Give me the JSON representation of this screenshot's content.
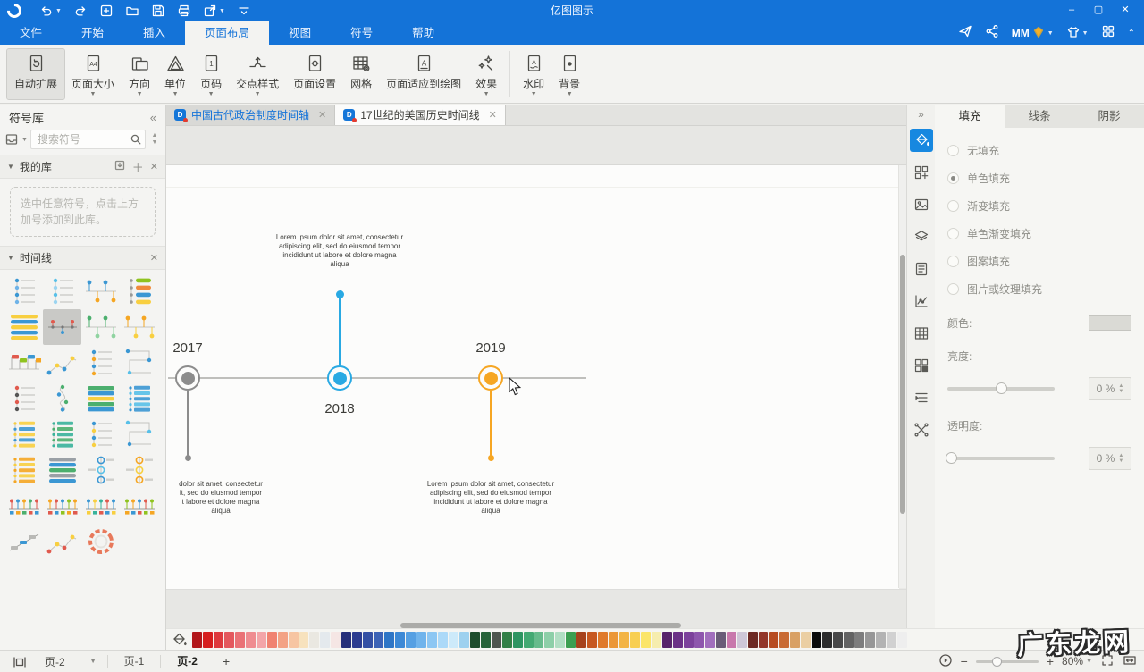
{
  "theme": {
    "titlebar_blue": "#1473d8",
    "accent_blue": "#1788e0",
    "timeline_blue": "#29a9e3",
    "timeline_orange": "#f6a623",
    "timeline_gray": "#8c8c8c"
  },
  "titlebar": {
    "title": "亿图图示",
    "quick_actions": [
      {
        "name": "undo",
        "caret": true
      },
      {
        "name": "redo",
        "caret": false
      },
      {
        "name": "new",
        "caret": false
      },
      {
        "name": "open",
        "caret": false
      },
      {
        "name": "save",
        "caret": false
      },
      {
        "name": "print",
        "caret": false
      },
      {
        "name": "export",
        "caret": true
      },
      {
        "name": "customize",
        "caret": false
      }
    ],
    "user_badge": "MM",
    "window_controls": [
      "minimize",
      "maximize",
      "close"
    ]
  },
  "menubar": {
    "items": [
      {
        "label": "文件",
        "active": false
      },
      {
        "label": "开始",
        "active": false
      },
      {
        "label": "插入",
        "active": false
      },
      {
        "label": "页面布局",
        "active": true
      },
      {
        "label": "视图",
        "active": false
      },
      {
        "label": "符号",
        "active": false
      },
      {
        "label": "帮助",
        "active": false
      }
    ]
  },
  "ribbon": {
    "items": [
      {
        "label": "自动扩展",
        "icon": "autoexpand",
        "caret": false,
        "active": true
      },
      {
        "label": "页面大小",
        "icon": "pagesize",
        "caret": true
      },
      {
        "label": "方向",
        "icon": "orientation",
        "caret": true
      },
      {
        "label": "单位",
        "icon": "unit",
        "caret": true
      },
      {
        "label": "页码",
        "icon": "pagenum",
        "caret": true
      },
      {
        "label": "交点样式",
        "icon": "junction",
        "caret": true
      },
      {
        "label": "页面设置",
        "icon": "pagesetup",
        "caret": false
      },
      {
        "label": "网格",
        "icon": "grid",
        "caret": false
      },
      {
        "label": "页面适应到绘图",
        "icon": "pagefit",
        "caret": false
      },
      {
        "label": "效果",
        "icon": "effects",
        "caret": true
      },
      {
        "label": "水印",
        "icon": "watermark",
        "caret": true,
        "group2": true
      },
      {
        "label": "背景",
        "icon": "background",
        "caret": true
      }
    ]
  },
  "sidebar": {
    "title": "符号库",
    "search_placeholder": "搜索符号",
    "my_library_label": "我的库",
    "empty_hint": "选中任意符号，点击上方加号添加到此库。",
    "timeline_section_label": "时间线",
    "symbols": [
      {
        "kind": "vt",
        "colors": [
          "#3b97d3",
          "#6fb3e8"
        ]
      },
      {
        "kind": "vt",
        "colors": [
          "#58c0e8",
          "#9bd4f0"
        ]
      },
      {
        "kind": "ht",
        "colors": [
          "#3b97d3",
          "#f5a623"
        ]
      },
      {
        "kind": "tags",
        "colors": [
          "#8fc31f",
          "#f08a3c",
          "#3b97d3",
          "#f8cf40"
        ]
      },
      {
        "kind": "list",
        "colors": [
          "#f8cf40",
          "#3b97d3",
          "#f8cf40",
          "#3b97d3",
          "#f8cf40"
        ]
      },
      {
        "kind": "milestone",
        "colors": [
          "#e05a4e",
          "#3b97d3"
        ],
        "selected": true
      },
      {
        "kind": "ht",
        "colors": [
          "#4caf6e",
          "#8fd3a0"
        ]
      },
      {
        "kind": "ht",
        "colors": [
          "#f5a623",
          "#f8cf40"
        ]
      },
      {
        "kind": "flags",
        "colors": [
          "#e05a4e",
          "#8fc31f",
          "#3b97d3",
          "#f5a623"
        ]
      },
      {
        "kind": "zig",
        "colors": [
          "#3b97d3",
          "#f8cf40"
        ]
      },
      {
        "kind": "vt",
        "colors": [
          "#3b97d3",
          "#f5a623"
        ]
      },
      {
        "kind": "angle",
        "colors": [
          "#3b97d3",
          "#58c0e8"
        ]
      },
      {
        "kind": "vt",
        "colors": [
          "#e05a4e",
          "#555555"
        ]
      },
      {
        "kind": "snake",
        "colors": [
          "#4caf6e",
          "#3b97d3"
        ]
      },
      {
        "kind": "list",
        "colors": [
          "#4caf6e",
          "#3b97d3",
          "#f8cf40",
          "#4caf6e",
          "#3b97d3"
        ]
      },
      {
        "kind": "vtb",
        "colors": [
          "#3b97d3",
          "#58c0e8"
        ]
      },
      {
        "kind": "vtb",
        "colors": [
          "#f8cf40",
          "#3b97d3"
        ]
      },
      {
        "kind": "vtb",
        "colors": [
          "#39b39b",
          "#4caf6e"
        ]
      },
      {
        "kind": "vt",
        "colors": [
          "#3b97d3",
          "#f8cf40"
        ]
      },
      {
        "kind": "angle",
        "colors": [
          "#58c0e8",
          "#3b97d3"
        ]
      },
      {
        "kind": "vtb",
        "colors": [
          "#f5a623",
          "#f8cf40"
        ]
      },
      {
        "kind": "list",
        "colors": [
          "#9aa0a6",
          "#3b97d3",
          "#4caf6e"
        ]
      },
      {
        "kind": "circles",
        "colors": [
          "#3b97d3",
          "#58c0e8"
        ]
      },
      {
        "kind": "circles",
        "colors": [
          "#f5a623",
          "#f8cf40"
        ]
      },
      {
        "kind": "ticks",
        "colors": [
          "#e05a4e",
          "#3b97d3",
          "#f5a623",
          "#4caf6e"
        ]
      },
      {
        "kind": "ticks",
        "colors": [
          "#f5a623",
          "#e05a4e",
          "#3b97d3",
          "#8fc31f"
        ]
      },
      {
        "kind": "ticks",
        "colors": [
          "#3b97d3",
          "#f8cf40",
          "#39b39b",
          "#e05a4e"
        ]
      },
      {
        "kind": "ticks",
        "colors": [
          "#8fc31f",
          "#f5a623",
          "#3b97d3",
          "#e05a4e"
        ]
      },
      {
        "kind": "diag",
        "colors": [
          "#9aa0a6",
          "#3b97d3"
        ]
      },
      {
        "kind": "zig",
        "colors": [
          "#e05a4e",
          "#f8cf40"
        ]
      },
      {
        "kind": "ring",
        "colors": [
          "#e8795b"
        ]
      }
    ]
  },
  "doc_tabs": [
    {
      "label": "中国古代政治制度时间轴",
      "highlighted": true,
      "active": false
    },
    {
      "label": "17世纪的美国历史时间线",
      "highlighted": false,
      "active": true
    }
  ],
  "canvas": {
    "timeline": {
      "milestones": [
        {
          "year": "2017",
          "color": "#8c8c8c",
          "direction": "down",
          "text": "dolor sit amet, consectetur\nit, sed do eiusmod tempor\nt labore et dolore magna\naliqua"
        },
        {
          "year": "2018",
          "color": "#29a9e3",
          "direction": "up",
          "text": "Lorem ipsum dolor sit amet, consectetur\nadipiscing elit, sed do eiusmod tempor\nincididunt ut labore et dolore magna\naliqua"
        },
        {
          "year": "2019",
          "color": "#f6a623",
          "direction": "down",
          "text": "Lorem ipsum dolor sit amet, consectetur\nadipiscing elit, sed do eiusmod tempor\nincididunt ut labore et dolore magna\naliqua"
        }
      ]
    }
  },
  "right_toolbar": {
    "items": [
      {
        "name": "fill",
        "active": true
      },
      {
        "name": "symbols"
      },
      {
        "name": "image"
      },
      {
        "name": "layers"
      },
      {
        "name": "note"
      },
      {
        "name": "chart"
      },
      {
        "name": "table"
      },
      {
        "name": "blocks"
      },
      {
        "name": "outline"
      },
      {
        "name": "connect"
      }
    ]
  },
  "format_panel": {
    "tabs": [
      {
        "label": "填充",
        "active": true
      },
      {
        "label": "线条",
        "active": false
      },
      {
        "label": "阴影",
        "active": false
      }
    ],
    "fill_options": [
      {
        "label": "无填充",
        "selected": false
      },
      {
        "label": "单色填充",
        "selected": true
      },
      {
        "label": "渐变填充",
        "selected": false
      },
      {
        "label": "单色渐变填充",
        "selected": false
      },
      {
        "label": "图案填充",
        "selected": false
      },
      {
        "label": "图片或纹理填充",
        "selected": false
      }
    ],
    "color_label": "颜色:",
    "brightness": {
      "label": "亮度:",
      "value": "0 %",
      "percent": 50
    },
    "opacity": {
      "label": "透明度:",
      "value": "0 %",
      "percent": 0
    }
  },
  "palette": [
    "#b2171b",
    "#d61f1f",
    "#de3a3e",
    "#e4585d",
    "#ea7276",
    "#ef8c90",
    "#f3a5a8",
    "#f08270",
    "#f3a284",
    "#f7c5a2",
    "#f7e2bd",
    "#eae8e1",
    "#e4e9ed",
    "#f5e6e4",
    "#262f7a",
    "#2c3c90",
    "#3450a4",
    "#3c63b6",
    "#2e76c6",
    "#3c89d6",
    "#55a0e3",
    "#70b4ec",
    "#8dc7f3",
    "#acd9f8",
    "#cdeafa",
    "#9ed1ef",
    "#1e4e2d",
    "#266238",
    "#4e564f",
    "#328047",
    "#2e9562",
    "#44a973",
    "#67bb8c",
    "#8dcfa8",
    "#b1dec3",
    "#3c9f51",
    "#a7431d",
    "#c75921",
    "#df792a",
    "#eb9737",
    "#f3b444",
    "#f8cf51",
    "#fbe569",
    "#f6edae",
    "#58236a",
    "#6b3086",
    "#7c419b",
    "#8e56ad",
    "#a16ebd",
    "#6a5c78",
    "#c878ac",
    "#cec7d7",
    "#6d2923",
    "#933629",
    "#b74c21",
    "#c96b34",
    "#d9a165",
    "#ebcfa3",
    "#0c0c0c",
    "#2d2d2d",
    "#494949",
    "#636363",
    "#7d7d7d",
    "#979797",
    "#b3b3b3",
    "#d1d1d1",
    "#eeeeee"
  ],
  "statusbar": {
    "page_dropdown": "页-2",
    "pages": [
      {
        "label": "页-1",
        "active": false
      },
      {
        "label": "页-2",
        "active": true
      }
    ],
    "add_label": "+",
    "zoom": "80%"
  },
  "watermark": "广东龙网"
}
